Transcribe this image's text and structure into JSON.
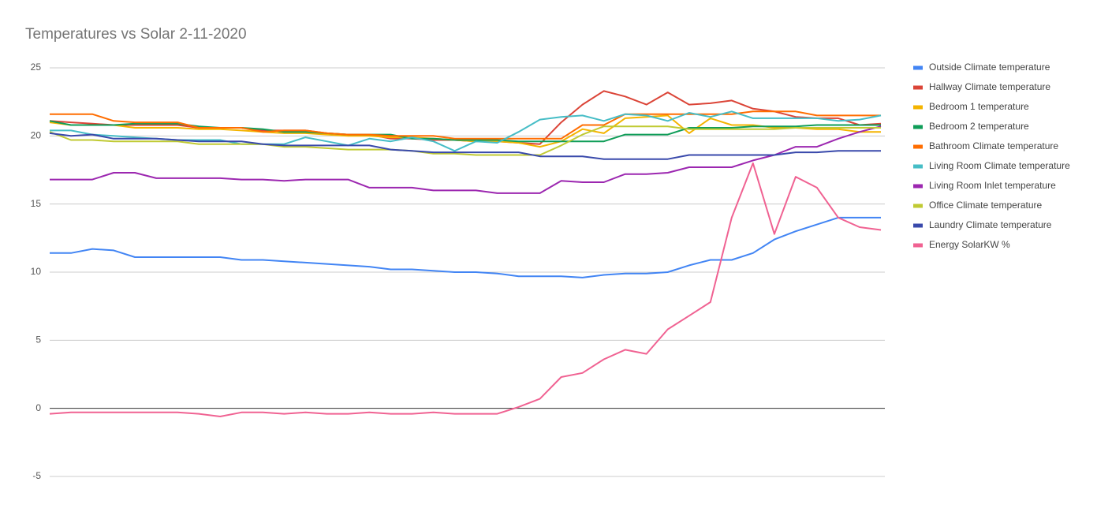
{
  "chart_data": {
    "type": "line",
    "title": "Temperatures vs Solar 2-11-2020",
    "categories": [
      null,
      null,
      null,
      null,
      null,
      null,
      null,
      null,
      null,
      null,
      null,
      null,
      null,
      null,
      null,
      null,
      null,
      null,
      null,
      null,
      null,
      null,
      null,
      null,
      null,
      null,
      null,
      null,
      null,
      null,
      null,
      null,
      null,
      null,
      null,
      null,
      null,
      null,
      null,
      null
    ],
    "ylim": [
      -5,
      25
    ],
    "yticks": [
      -5,
      0,
      5,
      10,
      15,
      20,
      25
    ],
    "grid": true,
    "legend": "right",
    "series": [
      {
        "name": "Outside Climate temperature",
        "color": "#4285f4",
        "values": [
          11.4,
          11.4,
          11.7,
          11.6,
          11.1,
          11.1,
          11.1,
          11.1,
          11.1,
          10.9,
          10.9,
          10.8,
          10.7,
          10.6,
          10.5,
          10.4,
          10.2,
          10.2,
          10.1,
          10.0,
          10.0,
          9.9,
          9.7,
          9.7,
          9.7,
          9.6,
          9.8,
          9.9,
          9.9,
          10.0,
          10.5,
          10.9,
          10.9,
          11.4,
          12.4,
          13.0,
          13.5,
          14.0,
          14.0,
          14.0
        ]
      },
      {
        "name": "Hallway Climate temperature",
        "color": "#db4437",
        "values": [
          21.1,
          21.0,
          20.9,
          20.8,
          20.8,
          20.8,
          20.8,
          20.6,
          20.6,
          20.6,
          20.4,
          20.4,
          20.4,
          20.2,
          20.1,
          20.1,
          19.8,
          19.8,
          19.7,
          19.7,
          19.6,
          19.6,
          19.5,
          19.4,
          21.0,
          22.3,
          23.3,
          22.9,
          22.3,
          23.2,
          22.3,
          22.4,
          22.6,
          22.0,
          21.8,
          21.4,
          21.3,
          21.3,
          20.8,
          20.9
        ]
      },
      {
        "name": "Bedroom 1 temperature",
        "color": "#f4b400",
        "values": [
          21.0,
          20.8,
          20.8,
          20.8,
          20.6,
          20.6,
          20.6,
          20.5,
          20.5,
          20.4,
          20.3,
          20.2,
          20.2,
          20.1,
          20.0,
          20.0,
          19.9,
          19.9,
          19.8,
          19.7,
          19.6,
          19.6,
          19.5,
          19.2,
          19.6,
          20.5,
          20.2,
          21.3,
          21.4,
          21.5,
          20.2,
          21.3,
          20.8,
          20.8,
          20.6,
          20.6,
          20.5,
          20.5,
          20.3,
          20.3
        ]
      },
      {
        "name": "Bedroom 2 temperature",
        "color": "#0f9d58",
        "values": [
          21.1,
          20.8,
          20.8,
          20.8,
          20.9,
          20.9,
          20.9,
          20.7,
          20.6,
          20.6,
          20.5,
          20.3,
          20.3,
          20.2,
          20.1,
          20.1,
          20.1,
          19.8,
          19.8,
          19.7,
          19.7,
          19.7,
          19.6,
          19.6,
          19.6,
          19.6,
          19.6,
          20.1,
          20.1,
          20.1,
          20.6,
          20.6,
          20.6,
          20.7,
          20.7,
          20.7,
          20.8,
          20.8,
          20.8,
          20.8
        ]
      },
      {
        "name": "Bathroom Climate temperature",
        "color": "#ff6d00",
        "values": [
          21.6,
          21.6,
          21.6,
          21.1,
          21.0,
          21.0,
          21.0,
          20.6,
          20.6,
          20.6,
          20.3,
          20.4,
          20.4,
          20.2,
          20.1,
          20.1,
          20.0,
          20.0,
          20.0,
          19.8,
          19.8,
          19.8,
          19.8,
          19.8,
          19.8,
          20.8,
          20.8,
          21.6,
          21.6,
          21.6,
          21.6,
          21.6,
          21.6,
          21.8,
          21.8,
          21.8,
          21.5,
          21.5,
          21.5,
          21.5
        ]
      },
      {
        "name": "Living Room Climate temperature",
        "color": "#46bdc6",
        "values": [
          20.4,
          20.4,
          20.1,
          20.0,
          19.9,
          19.8,
          19.7,
          19.7,
          19.7,
          19.4,
          19.4,
          19.4,
          19.9,
          19.6,
          19.3,
          19.8,
          19.6,
          19.9,
          19.6,
          18.9,
          19.6,
          19.5,
          20.3,
          21.2,
          21.4,
          21.5,
          21.1,
          21.6,
          21.5,
          21.1,
          21.7,
          21.4,
          21.8,
          21.3,
          21.3,
          21.3,
          21.3,
          21.1,
          21.2,
          21.5
        ]
      },
      {
        "name": "Living Room Inlet temperature",
        "color": "#9c27b0",
        "values": [
          16.8,
          16.8,
          16.8,
          17.3,
          17.3,
          16.9,
          16.9,
          16.9,
          16.9,
          16.8,
          16.8,
          16.7,
          16.8,
          16.8,
          16.8,
          16.2,
          16.2,
          16.2,
          16.0,
          16.0,
          16.0,
          15.8,
          15.8,
          15.8,
          16.7,
          16.6,
          16.6,
          17.2,
          17.2,
          17.3,
          17.7,
          17.7,
          17.7,
          18.2,
          18.6,
          19.2,
          19.2,
          19.8,
          20.3,
          20.7
        ]
      },
      {
        "name": "Office Climate temperature",
        "color": "#c0ca33",
        "values": [
          20.3,
          19.7,
          19.7,
          19.6,
          19.6,
          19.6,
          19.6,
          19.4,
          19.4,
          19.4,
          19.4,
          19.2,
          19.2,
          19.1,
          19.0,
          19.0,
          19.0,
          18.9,
          18.7,
          18.7,
          18.6,
          18.6,
          18.6,
          18.6,
          19.3,
          20.1,
          20.7,
          20.7,
          20.7,
          20.7,
          20.5,
          20.5,
          20.5,
          20.5,
          20.5,
          20.6,
          20.6,
          20.6,
          20.6,
          20.6
        ]
      },
      {
        "name": "Laundry Climate temperature",
        "color": "#3949ab",
        "values": [
          20.2,
          20.0,
          20.1,
          19.8,
          19.8,
          19.8,
          19.7,
          19.6,
          19.6,
          19.6,
          19.4,
          19.3,
          19.3,
          19.3,
          19.3,
          19.3,
          19.0,
          18.9,
          18.8,
          18.8,
          18.8,
          18.8,
          18.8,
          18.5,
          18.5,
          18.5,
          18.3,
          18.3,
          18.3,
          18.3,
          18.6,
          18.6,
          18.6,
          18.6,
          18.6,
          18.8,
          18.8,
          18.9,
          18.9,
          18.9
        ]
      },
      {
        "name": "Energy SolarKW %",
        "color": "#f06292",
        "values": [
          -0.4,
          -0.3,
          -0.3,
          -0.3,
          -0.3,
          -0.3,
          -0.3,
          -0.4,
          -0.6,
          -0.3,
          -0.3,
          -0.4,
          -0.3,
          -0.4,
          -0.4,
          -0.3,
          -0.4,
          -0.4,
          -0.3,
          -0.4,
          -0.4,
          -0.4,
          0.1,
          0.7,
          2.3,
          2.6,
          3.6,
          4.3,
          4.0,
          5.8,
          6.8,
          7.8,
          14.0,
          18.0,
          12.8,
          17.0,
          16.2,
          14.0,
          13.3,
          13.1
        ]
      }
    ]
  }
}
